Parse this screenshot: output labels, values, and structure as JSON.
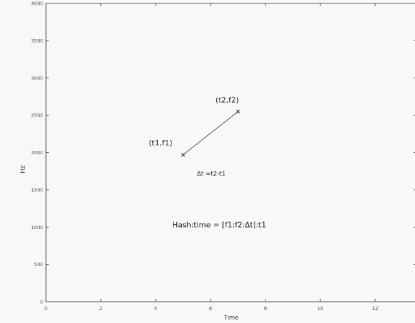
{
  "chart_data": {
    "type": "scatter",
    "xlabel": "Time",
    "ylabel": "Hz",
    "xlim": [
      0,
      13.5
    ],
    "ylim": [
      0,
      4000
    ],
    "xticks": [
      0,
      2,
      4,
      6,
      8,
      10,
      12
    ],
    "yticks": [
      0,
      500,
      1000,
      1500,
      2000,
      2500,
      3000,
      3500,
      4000
    ],
    "grid": false,
    "series": [
      {
        "points": [
          {
            "x": 5,
            "y": 1970,
            "label": "(t1,f1)"
          },
          {
            "x": 7,
            "y": 2550,
            "label": "(t2,f2)"
          }
        ]
      }
    ],
    "annotations": [
      {
        "text": "Δt =t2-t1",
        "x": 5.5,
        "y": 1690
      },
      {
        "text": "Hash:time = [f1:f2:Δt]:t1",
        "x": 4.6,
        "y": 1000
      }
    ]
  }
}
